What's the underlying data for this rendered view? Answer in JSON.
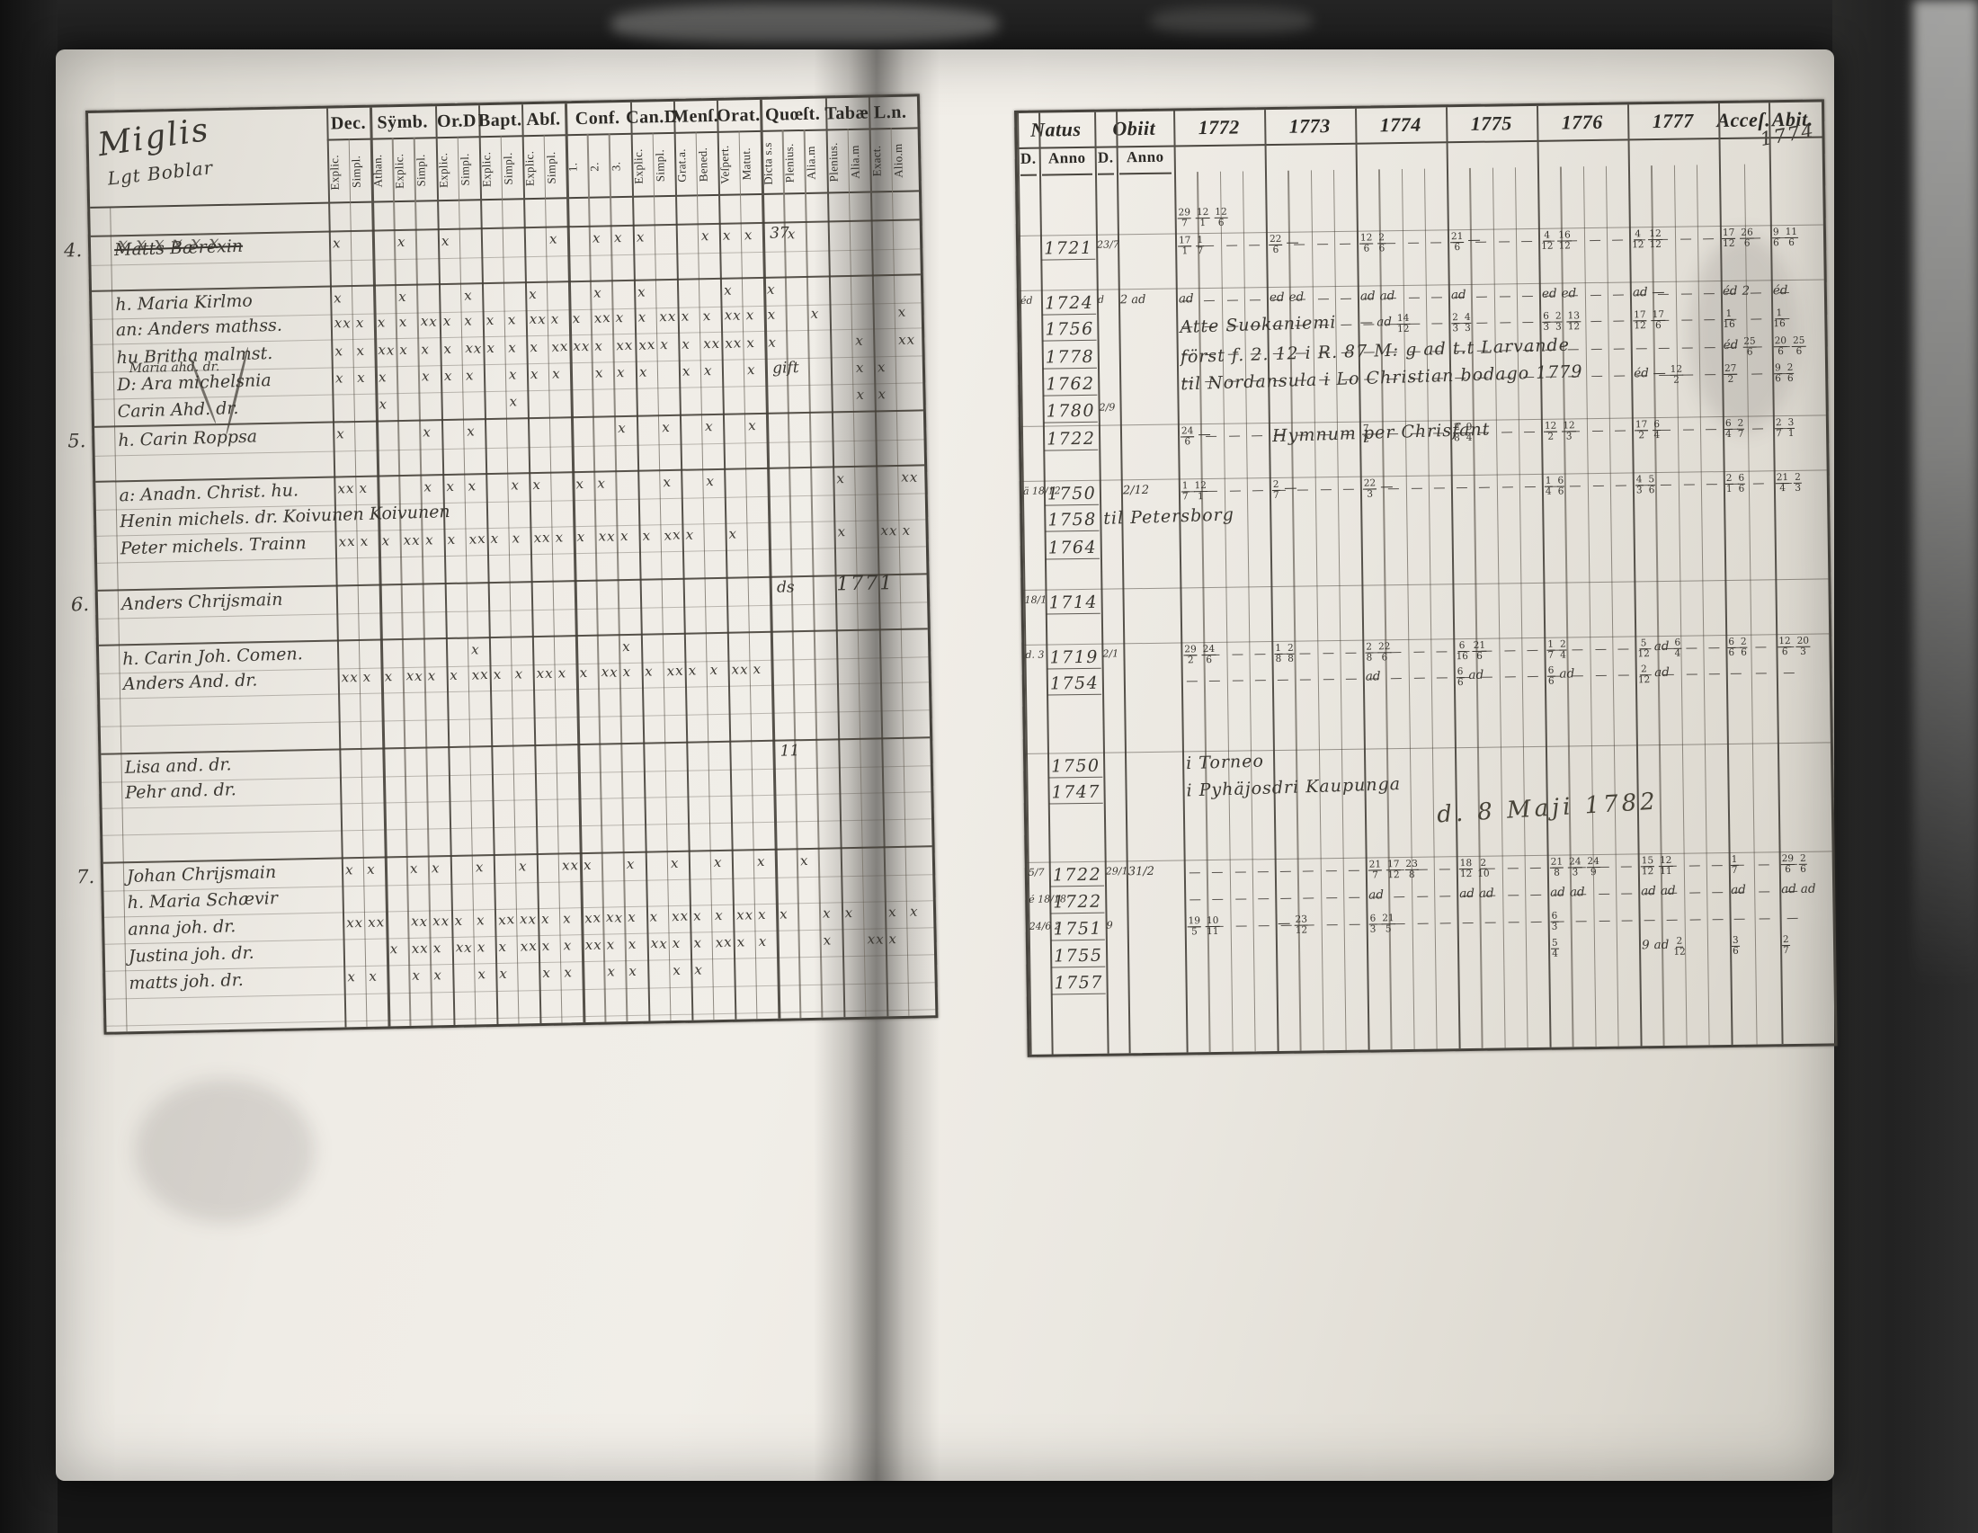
{
  "left_table": {
    "title_line1": "Miglis",
    "title_line2": "Lgt Boblar",
    "columns": [
      {
        "label": "Dec.",
        "subs": [
          "Explic.",
          "Simpl."
        ]
      },
      {
        "label": "Sÿmb.",
        "subs": [
          "Athan.",
          "Explic.",
          "Simpl."
        ]
      },
      {
        "label": "Or.D",
        "subs": [
          "Explic.",
          "Simpl."
        ]
      },
      {
        "label": "Bapt.",
        "subs": [
          "Explic.",
          "Simpl."
        ]
      },
      {
        "label": "Abſ.",
        "subs": [
          "Explic.",
          "Simpl."
        ]
      },
      {
        "label": "Conf.",
        "subs": [
          "1.",
          "2.",
          "3."
        ]
      },
      {
        "label": "Can.D",
        "subs": [
          "Explic.",
          "Simpl."
        ]
      },
      {
        "label": "Menſ.",
        "subs": [
          "Grat.a.",
          "Bened."
        ]
      },
      {
        "label": "Orat.",
        "subs": [
          "Veſpert.",
          "Matut."
        ]
      },
      {
        "label": "Quœſt.",
        "subs": [
          "Dicta s.s",
          "Plenius.",
          "Alia.m"
        ]
      },
      {
        "label": "Tabæ",
        "subs": [
          "Plenius.",
          "Alia.m"
        ]
      },
      {
        "label": "L.n.",
        "subs": [
          "Exact.",
          "Alio.m"
        ]
      }
    ]
  },
  "right_table": {
    "natus_label": "Natus",
    "obiit_label": "Obiit",
    "sub_d": "D.",
    "sub_anno": "Anno",
    "years": [
      "1772",
      "1773",
      "1774",
      "1775",
      "1776",
      "1777"
    ],
    "acces_label": "Acceſ.",
    "abit_label": "Abit.",
    "corner_note": "1774"
  },
  "annotations": {
    "maji_note": "d. 8 Maji 1782"
  },
  "rows": [
    {
      "y": [
        "29/7 12/1 12/6",
        "",
        "",
        "",
        "",
        ""
      ]
    },
    {
      "no": "4.",
      "name": "Matts Bærexin",
      "strike": true,
      "marks": "x..x.x....x.xxx..xxx.x.....",
      "q": "37",
      "na": "1721",
      "od": "23/7",
      "y": [
        "17/1 1/7",
        "22/6 —",
        "12/6 2/6",
        "21/6 —",
        "4/12 16/12",
        "4/12 12/12"
      ],
      "acc": "17/12 26/6",
      "ab": "9/6 11/6",
      "dash": true,
      "sep": true
    },
    {},
    {
      "name": "h. Maria Kirlmo",
      "marks": "x..x..x..x..x.x...x.x......",
      "nd": "éd",
      "na": "1724",
      "od": "d",
      "oa": "2 ad",
      "y": [
        "ad",
        "ed ed",
        "ad ad",
        "ad",
        "ed ed",
        "ad —"
      ],
      "acc": "éd 2",
      "ab": "éd",
      "dash": true,
      "sep": true
    },
    {
      "name": "an: Anders mathss.",
      "marks": "XxxxXxxxxXxxXxxXxxXxx.x...x",
      "na": "1756",
      "note": {
        "col": 0,
        "text": "Atte Suokaniemi"
      },
      "y": [
        "",
        "",
        "— ad 14/12",
        "2/3 4/3",
        "6/3 2/3 13/12",
        "17/12 17/6"
      ],
      "acc": "1/16",
      "ab": "1/16",
      "dash": true
    },
    {
      "name": "hu Britha malmst.",
      "name2": "Maria ahd. dr.",
      "marks": "xxXxxxXxxxXXxXXxxXXxx...x.X",
      "na": "1778",
      "note": {
        "col": 0,
        "text": "först f. 2. 12 i R. 87 M: g ad t.t Larvande"
      },
      "acc": "éd 25/6",
      "ab": "20/6 25/6",
      "dash": true
    },
    {
      "name": "D: Ara michelsnia",
      "marks": "xxx.xxx.xxx.xxx.xx.x....xx.",
      "q": "gift",
      "na": "1762",
      "note": {
        "col": 0,
        "text": "til Nordansula i Lo Christian bodago 1779"
      },
      "y": [
        "",
        "",
        "",
        "",
        "",
        "éd — 12/2"
      ],
      "acc": "27/2",
      "ab": "9/6 2/6",
      "dash": true
    },
    {
      "name": "Carin Ahd. dr.",
      "marks": "..x.....x...............xx.",
      "na": "1780",
      "od": "2/9"
    },
    {
      "no": "5.",
      "name": "h. Carin Roppsa",
      "marks": "x...x.x......x.x.x.x.......",
      "na": "1722",
      "note": {
        "col": 1,
        "text": "Hymnum per Chrisfant"
      },
      "y": [
        "24/6 —",
        "",
        "7/2",
        "2/8 9/4",
        "12/2 12/3",
        "17/2 6/4"
      ],
      "acc": "6/4 2/7",
      "ab": "2/7 3/1",
      "dash": true,
      "sep": true
    },
    {},
    {
      "name": "a: Anadn. Christ. hu.",
      "marks": "Xx..xxx.xx.xx..x.x.....x..X",
      "nd": "ä 18/12",
      "na": "1750",
      "oa": "2/12",
      "y": [
        "1/7 12/1",
        "2/7 —",
        "22/3 —",
        "",
        "1/4 6/6",
        "4/3 5/6"
      ],
      "acc": "2/1 6/6",
      "ab": "21/4 2/3",
      "dash": true,
      "sep": true
    },
    {
      "name": "Henin michels. dr. Koivunen  Koivunen",
      "na": "1758",
      "note": {
        "col": -2,
        "text": "til Petersborg"
      }
    },
    {
      "name": "Peter michels. Trainn",
      "marks": "XxxXxxXxxXxxXxxXx.x....x.Xx",
      "na": "1764"
    },
    {},
    {
      "no": "6.",
      "name": "Anders Chrijsmain",
      "q": "ds",
      "t": "1771",
      "nd": "18/1",
      "na": "1714",
      "sep": true
    },
    {},
    {
      "name": "h. Carin Joh. Comen.",
      "marks": "......x......x.............",
      "nd": "d. 3",
      "na": "1719",
      "od": "2/1",
      "y": [
        "29/2 24/6",
        "1/8 2/8",
        "2/8 22/6",
        "6/16 21/6",
        "1/7 2/4",
        "5/12 ad 6/4"
      ],
      "acc": "6/6 2/6",
      "ab": "12/6 20/3",
      "dash": true,
      "sep": true
    },
    {
      "name": "Anders And. dr.",
      "marks": "XxxXxxXxxXxxXxxXxxXx.......",
      "na": "1754",
      "y": [
        "",
        "",
        "ad",
        "6/6 ad",
        "6/6 ad",
        "2/12 ad"
      ],
      "dash": true
    },
    {},
    {},
    {
      "name": "Lisa and. dr.",
      "q": "11",
      "na": "1750",
      "note": {
        "col": 0,
        "text": "i Torneo"
      },
      "sep": true
    },
    {
      "name": "Pehr and. dr.",
      "na": "1747",
      "note": {
        "col": 0,
        "text": "i Pyhäjosdri Kaupunga"
      }
    },
    {},
    {},
    {
      "no": "7.",
      "name": "Johan Chrijsmain",
      "marks": "xx.xx.x.x.Xx.x.x.x.x.x.....",
      "nd": "5/7",
      "na": "1722",
      "od": "29/1",
      "oa": "31/2",
      "y": [
        "",
        "",
        "21/7 17/12 23/8",
        "18/12 2/10",
        "21/8 24/3 24/9",
        "15/12 12/11"
      ],
      "acc": "1/7",
      "ab": "29/6 2/6",
      "dash": true,
      "sep": true
    },
    {
      "name": "h. Maria Schævir",
      "nd": "é 18/18",
      "na": "1722",
      "y": [
        "",
        "",
        "ad",
        "ad ad",
        "ad ad",
        "ad ad"
      ],
      "acc": "ad",
      "ab": "ad ad",
      "dash": true
    },
    {
      "name": "anna joh. dr.",
      "marks": "XX.XXxxXXxxXXxxXxxXxx.xx.xx",
      "nd": "24/6 2",
      "na": "1751",
      "od": "9",
      "y": [
        "19/5 10/11",
        "— 23/12",
        "6/3 21/5",
        "",
        "6/3",
        ""
      ],
      "dash": true
    },
    {
      "name": "Justina joh. dr.",
      "marks": "..xXxXxxXxxXxxXxxXxx..x.Xx.",
      "na": "1755",
      "y": [
        "",
        "",
        "",
        "",
        "5/4",
        "9 ad 2/12"
      ],
      "acc": "3/6",
      "ab": "2/7"
    },
    {
      "name": "matts joh. dr.",
      "marks": "xx.xx.xx.xx.xx.xx..........",
      "na": "1757"
    },
    {}
  ]
}
